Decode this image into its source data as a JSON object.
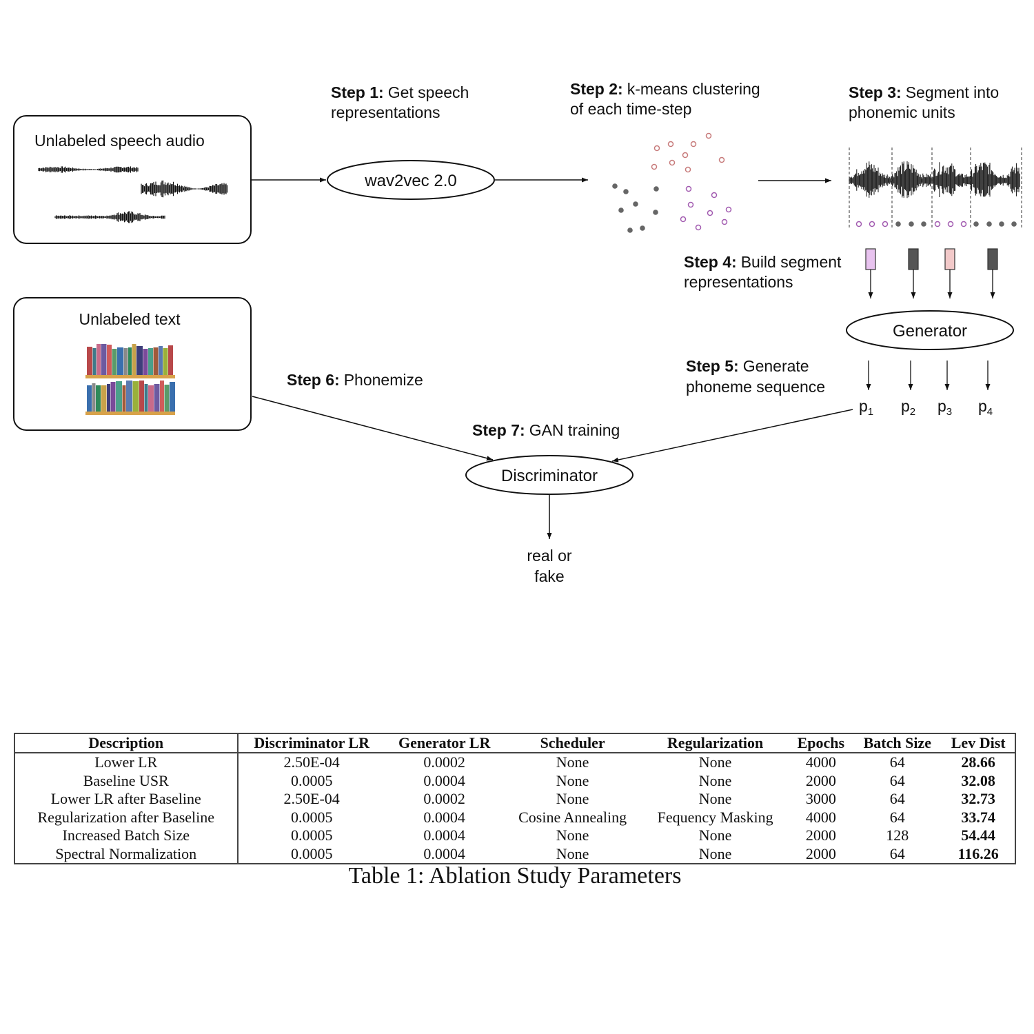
{
  "diagram": {
    "boxes": {
      "speech_audio": "Unlabeled speech audio",
      "text": "Unlabeled text"
    },
    "nodes": {
      "wav2vec": "wav2vec 2.0",
      "generator": "Generator",
      "discriminator": "Discriminator"
    },
    "steps": [
      {
        "prefix": "Step 1:",
        "lines": [
          "Get speech",
          "representations"
        ]
      },
      {
        "prefix": "Step 2:",
        "lines": [
          "k-means clustering",
          "of each time-step"
        ]
      },
      {
        "prefix": "Step 3:",
        "lines": [
          "Segment into",
          "phonemic units"
        ]
      },
      {
        "prefix": "Step 4:",
        "lines": [
          "Build segment",
          "representations"
        ]
      },
      {
        "prefix": "Step 5:",
        "lines": [
          "Generate",
          "phoneme sequence"
        ]
      },
      {
        "prefix": "Step 6:",
        "lines": [
          "Phonemize"
        ]
      },
      {
        "prefix": "Step 7:",
        "lines": [
          "GAN training"
        ]
      }
    ],
    "phonemes": [
      {
        "base": "p",
        "sub": "1"
      },
      {
        "base": "p",
        "sub": "2"
      },
      {
        "base": "p",
        "sub": "3"
      },
      {
        "base": "p",
        "sub": "4"
      }
    ],
    "output": [
      "real or",
      "fake"
    ],
    "colors": {
      "segment_1": "#e8c3ef",
      "segment_2": "#555555",
      "segment_3": "#f2c9c9",
      "segment_4": "#555555",
      "dot_purple": "#a25bb0",
      "dot_pink": "#c77a7a",
      "dot_gray": "#666666"
    },
    "icons": {
      "audio": "waveform-icon",
      "text": "bookshelf-icon"
    }
  },
  "table": {
    "headers": [
      "Description",
      "Discriminator LR",
      "Generator LR",
      "Scheduler",
      "Regularization",
      "Epochs",
      "Batch Size",
      "Lev Dist"
    ],
    "rows": [
      [
        "Lower LR",
        "2.50E-04",
        "0.0002",
        "None",
        "None",
        "4000",
        "64",
        "28.66"
      ],
      [
        "Baseline USR",
        "0.0005",
        "0.0004",
        "None",
        "None",
        "2000",
        "64",
        "32.08"
      ],
      [
        "Lower LR after Baseline",
        "2.50E-04",
        "0.0002",
        "None",
        "None",
        "3000",
        "64",
        "32.73"
      ],
      [
        "Regularization after Baseline",
        "0.0005",
        "0.0004",
        "Cosine Annealing",
        "Fequency Masking",
        "4000",
        "64",
        "33.74"
      ],
      [
        "Increased Batch Size",
        "0.0005",
        "0.0004",
        "None",
        "None",
        "2000",
        "128",
        "54.44"
      ],
      [
        "Spectral Normalization",
        "0.0005",
        "0.0004",
        "None",
        "None",
        "2000",
        "64",
        "116.26"
      ]
    ],
    "caption": "Table 1: Ablation Study Parameters"
  }
}
